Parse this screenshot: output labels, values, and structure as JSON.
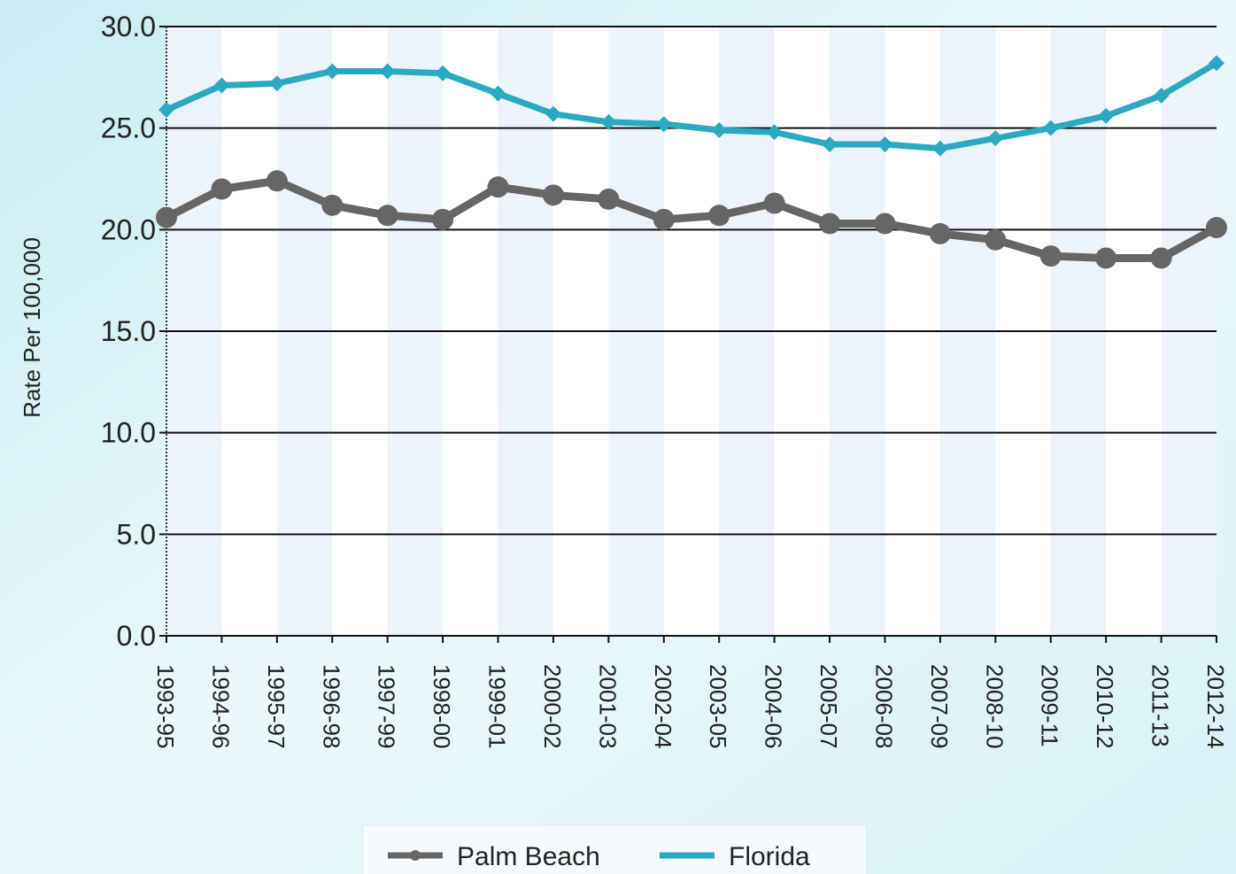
{
  "chart_data": {
    "type": "line",
    "y_label": "Rate Per 100,000",
    "categories": [
      "1993-95",
      "1994-96",
      "1995-97",
      "1996-98",
      "1997-99",
      "1998-00",
      "1999-01",
      "2000-02",
      "2001-03",
      "2002-04",
      "2003-05",
      "2004-06",
      "2005-07",
      "2006-08",
      "2007-09",
      "2008-10",
      "2009-11",
      "2010-12",
      "2011-13",
      "2012-14"
    ],
    "series": [
      {
        "name": "Palm Beach",
        "color": "#666666",
        "values": [
          20.6,
          22.0,
          22.4,
          21.2,
          20.7,
          20.5,
          22.1,
          21.7,
          21.5,
          20.5,
          20.7,
          21.3,
          20.3,
          20.3,
          19.8,
          19.5,
          18.7,
          18.6,
          18.6,
          20.1
        ]
      },
      {
        "name": "Florida",
        "color": "#2aa9c0",
        "values": [
          25.9,
          27.1,
          27.2,
          27.8,
          27.8,
          27.7,
          26.7,
          25.7,
          25.3,
          25.2,
          24.9,
          24.8,
          24.2,
          24.2,
          24.0,
          24.5,
          25.0,
          25.6,
          26.6,
          28.2
        ]
      }
    ],
    "ylim": [
      0,
      30
    ],
    "yticks": [
      {
        "value": 0,
        "label": "0.0"
      },
      {
        "value": 5,
        "label": "5.0"
      },
      {
        "value": 10,
        "label": "10.0"
      },
      {
        "value": 15,
        "label": "15.0"
      },
      {
        "value": 20,
        "label": "20.0"
      },
      {
        "value": 25,
        "label": "25.0"
      },
      {
        "value": 30,
        "label": "30.0"
      }
    ],
    "grid": true,
    "legend": "bottom"
  }
}
